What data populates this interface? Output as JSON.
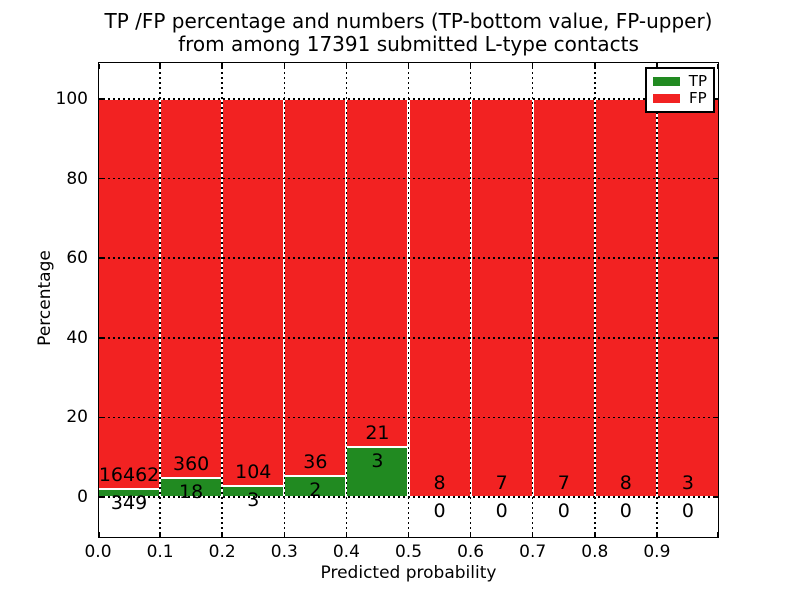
{
  "chart_data": {
    "type": "bar",
    "stacked_percentage": true,
    "title": "TP /FP percentage and numbers (TP-bottom value, FP-upper)\nfrom among 17391 submitted L-type contacts",
    "title_line1": "TP /FP percentage and numbers (TP-bottom value, FP-upper)",
    "title_line2": "from among 17391 submitted L-type contacts",
    "xlabel": "Predicted probability",
    "ylabel": "Percentage",
    "total_contacts": 17391,
    "categories": [
      "0.0-0.1",
      "0.1-0.2",
      "0.2-0.3",
      "0.3-0.4",
      "0.4-0.5",
      "0.5-0.6",
      "0.6-0.7",
      "0.7-0.8",
      "0.8-0.9",
      "0.9-1.0"
    ],
    "series": [
      {
        "name": "TP",
        "counts": [
          349,
          18,
          3,
          2,
          3,
          0,
          0,
          0,
          0,
          0
        ]
      },
      {
        "name": "FP",
        "counts": [
          16462,
          360,
          104,
          36,
          21,
          8,
          7,
          7,
          8,
          3
        ]
      }
    ],
    "tp_pct": [
      2.08,
      4.76,
      2.8,
      5.26,
      12.5,
      0,
      0,
      0,
      0,
      0
    ],
    "bins": [
      {
        "range": [
          0.0,
          0.1
        ],
        "tp": 349,
        "fp": 16462
      },
      {
        "range": [
          0.1,
          0.2
        ],
        "tp": 18,
        "fp": 360
      },
      {
        "range": [
          0.2,
          0.3
        ],
        "tp": 3,
        "fp": 104
      },
      {
        "range": [
          0.3,
          0.4
        ],
        "tp": 2,
        "fp": 36
      },
      {
        "range": [
          0.4,
          0.5
        ],
        "tp": 3,
        "fp": 21
      },
      {
        "range": [
          0.5,
          0.6
        ],
        "tp": 0,
        "fp": 8
      },
      {
        "range": [
          0.6,
          0.7
        ],
        "tp": 0,
        "fp": 7
      },
      {
        "range": [
          0.7,
          0.8
        ],
        "tp": 0,
        "fp": 7
      },
      {
        "range": [
          0.8,
          0.9
        ],
        "tp": 0,
        "fp": 8
      },
      {
        "range": [
          0.9,
          1.0
        ],
        "tp": 0,
        "fp": 3
      }
    ],
    "colors": {
      "tp": "#218a21",
      "fp": "#f22222"
    },
    "legend": [
      {
        "label": "TP",
        "color": "#218a21"
      },
      {
        "label": "FP",
        "color": "#f22222"
      }
    ],
    "legend_position": "upper right",
    "x_ticks": [
      "0.0",
      "0.1",
      "0.2",
      "0.3",
      "0.4",
      "0.5",
      "0.6",
      "0.7",
      "0.8",
      "0.9"
    ],
    "y_ticks": [
      "0",
      "20",
      "40",
      "60",
      "80",
      "100"
    ],
    "xlim": [
      0.0,
      1.0
    ],
    "ylim": [
      -10.5,
      109.5
    ],
    "grid": "dotted black, drawn above bars"
  }
}
